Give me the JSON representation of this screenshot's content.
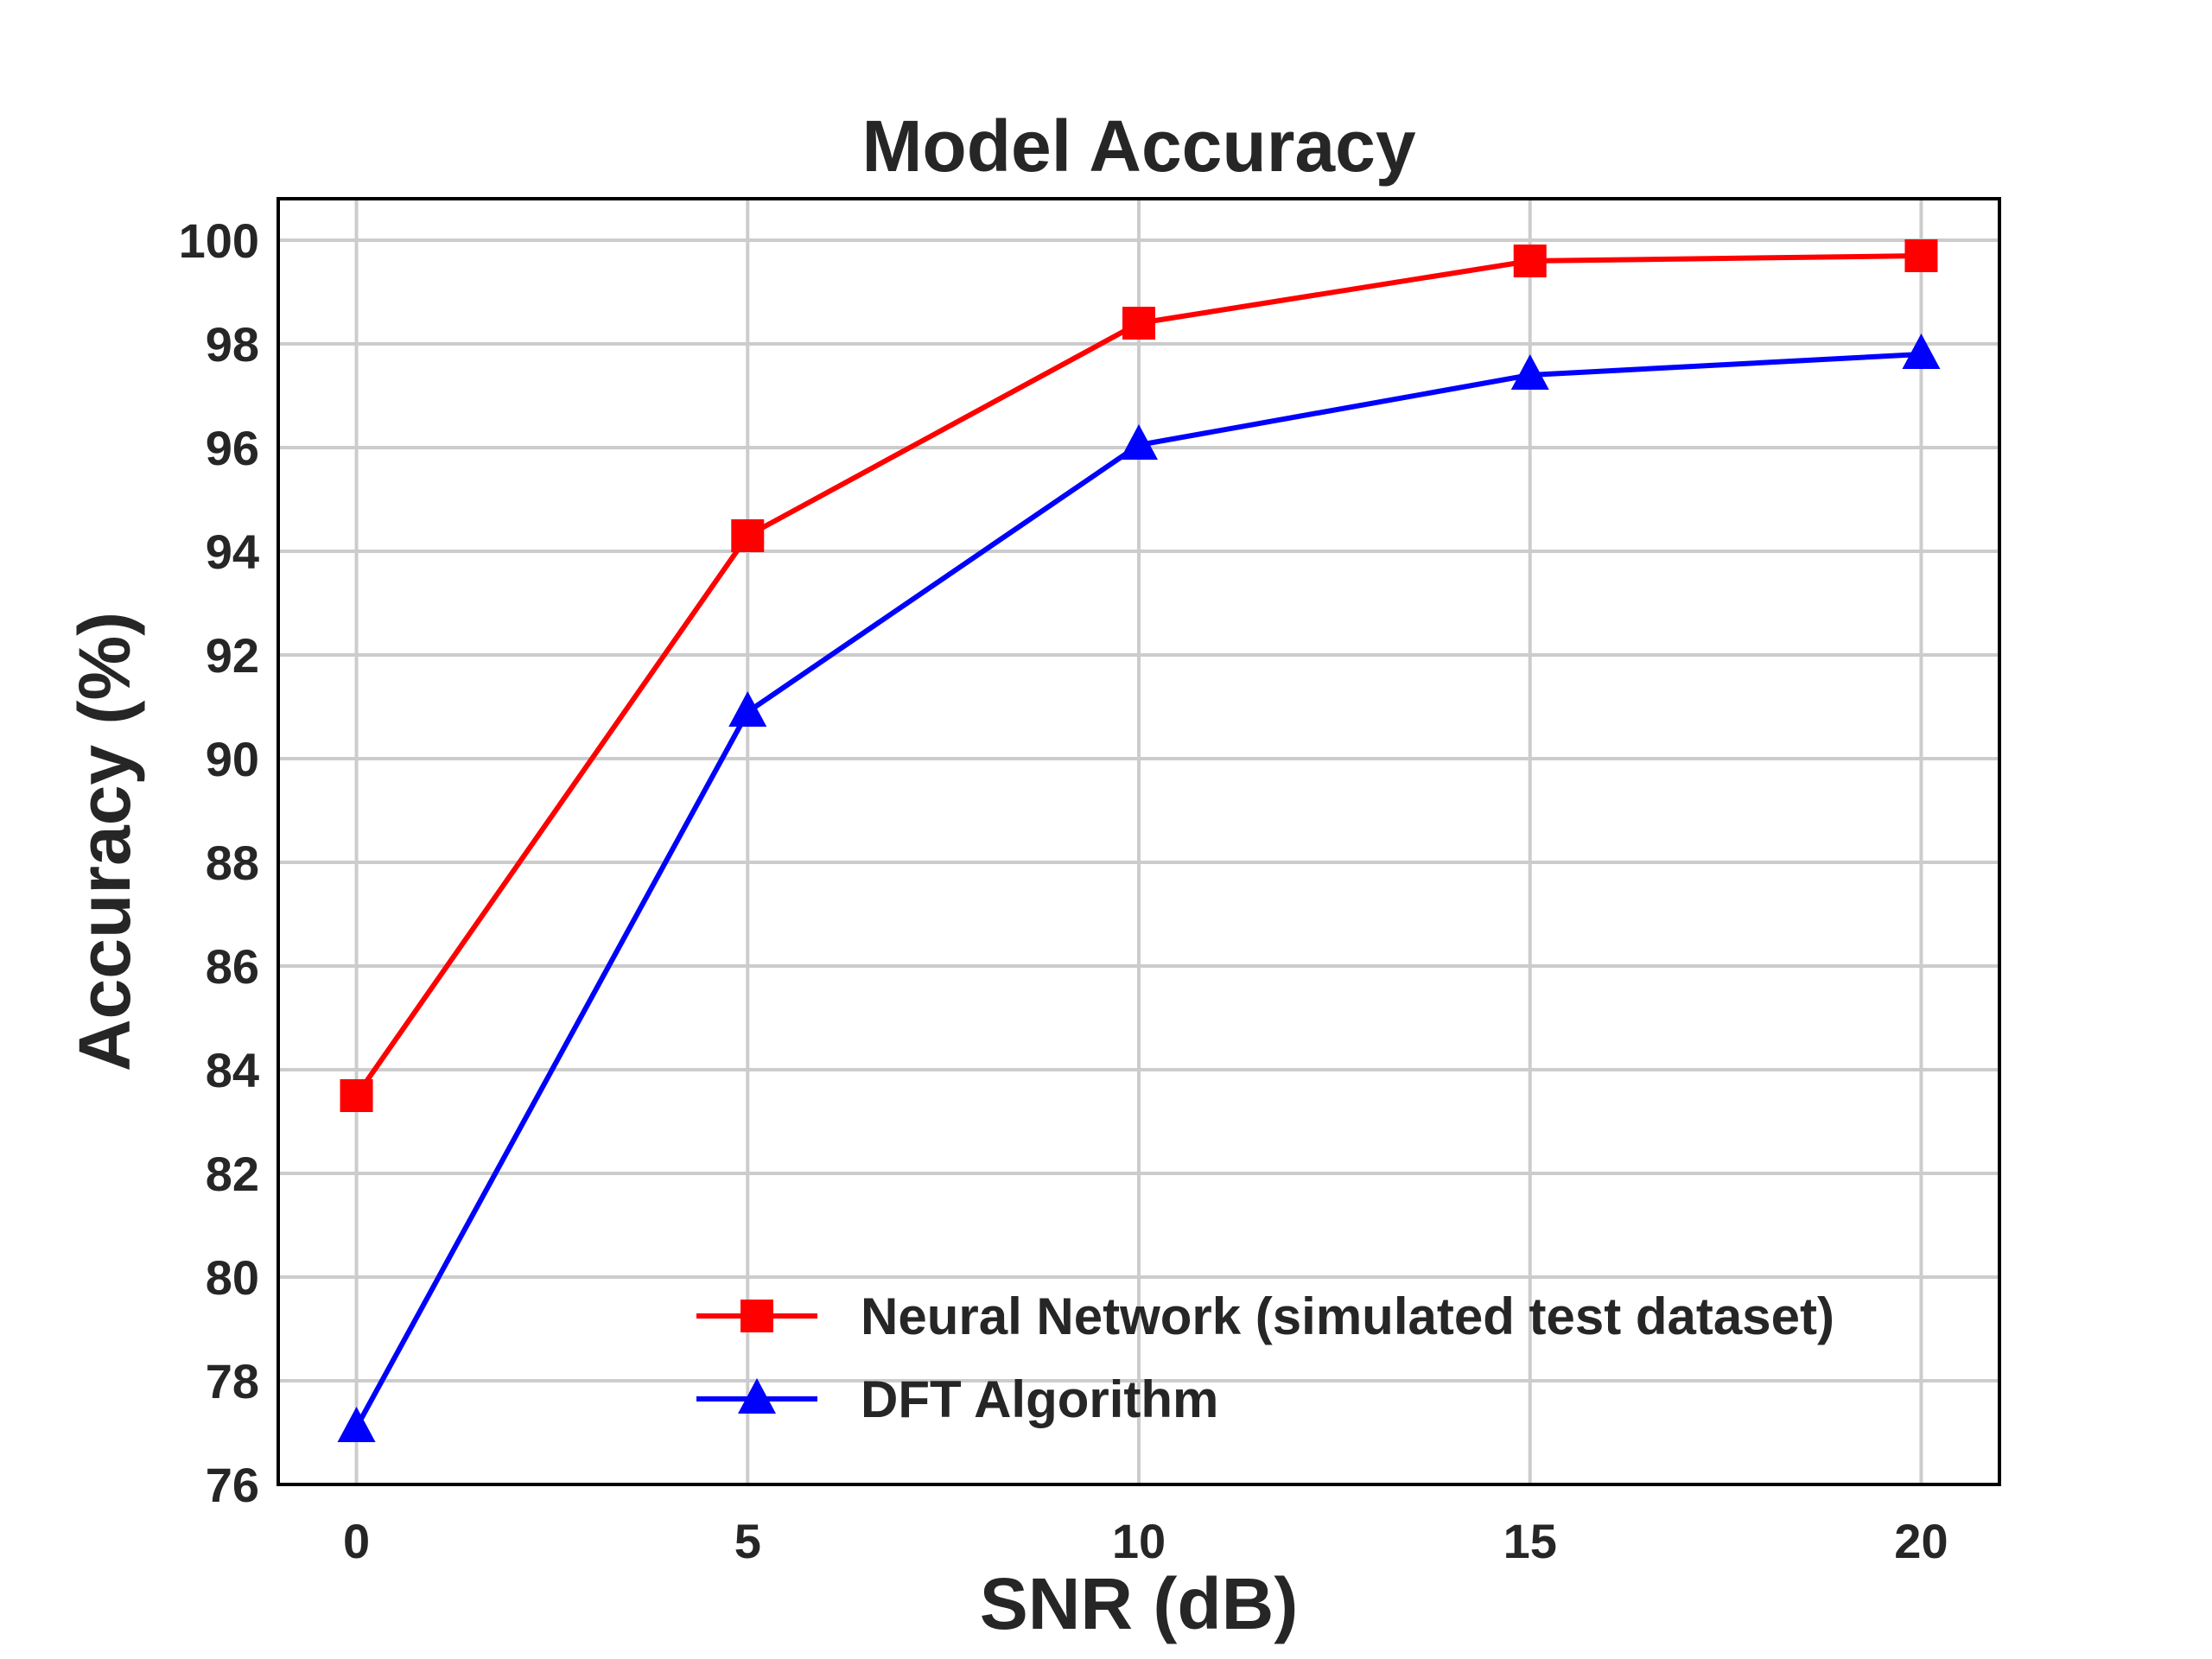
{
  "chart_data": {
    "type": "line",
    "title": "Model Accuracy",
    "xlabel": "SNR (dB)",
    "ylabel": "Accuracy (%)",
    "x": [
      0,
      5,
      10,
      15,
      20
    ],
    "xticks": [
      "0",
      "5",
      "10",
      "15",
      "20"
    ],
    "yticks": [
      "76",
      "78",
      "80",
      "82",
      "84",
      "86",
      "88",
      "90",
      "92",
      "94",
      "96",
      "98",
      "100"
    ],
    "xlim": [
      -1,
      21
    ],
    "ylim": [
      76,
      100.8
    ],
    "grid": true,
    "legend_position": "lower-right",
    "series": [
      {
        "name": "Neural Network (simulated test dataset)",
        "values": [
          83.5,
          94.3,
          98.4,
          99.6,
          99.7
        ],
        "color": "#ff0000",
        "marker": "square"
      },
      {
        "name": "DFT Algorithm",
        "values": [
          77.1,
          90.9,
          96.05,
          97.4,
          97.8
        ],
        "color": "#0000ff",
        "marker": "triangle"
      }
    ]
  }
}
